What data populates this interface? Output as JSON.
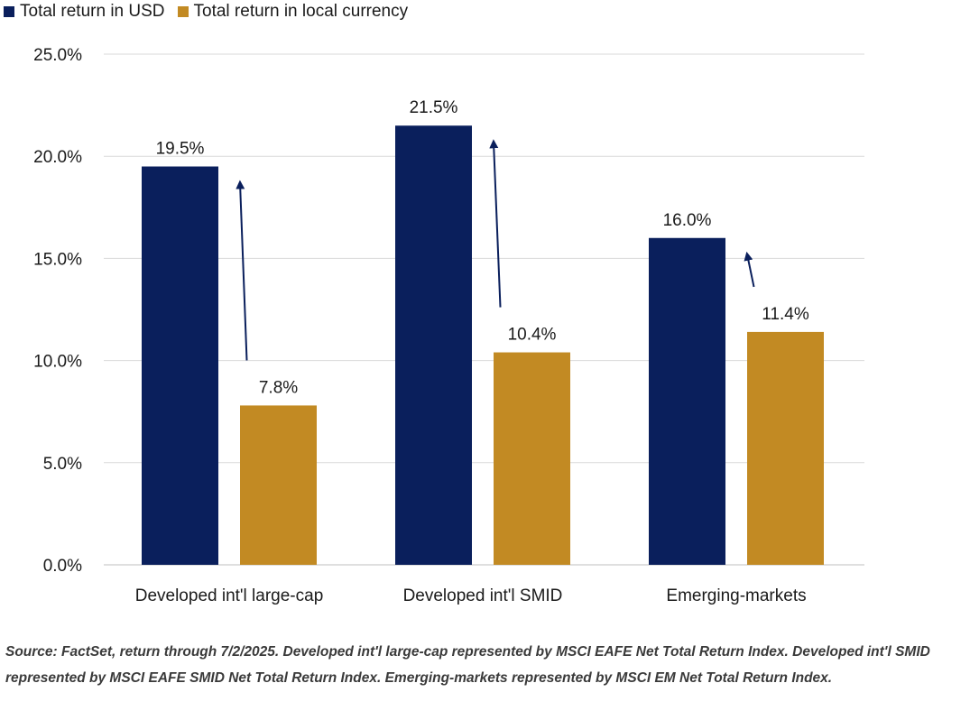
{
  "chart_data": {
    "type": "bar",
    "categories": [
      "Developed int'l large-cap",
      "Developed int'l SMID",
      "Emerging-markets"
    ],
    "series": [
      {
        "name": "Total return in USD",
        "color": "#0a1f5c",
        "values": [
          19.5,
          21.5,
          16.0
        ],
        "labels": [
          "19.5%",
          "21.5%",
          "16.0%"
        ]
      },
      {
        "name": "Total return in local currency",
        "color": "#c28a23",
        "values": [
          7.8,
          10.4,
          11.4
        ],
        "labels": [
          "7.8%",
          "10.4%",
          "11.4%"
        ]
      }
    ],
    "ylim": [
      0,
      25
    ],
    "yticks": [
      {
        "value": 0,
        "label": "0.0%"
      },
      {
        "value": 5,
        "label": "5.0%"
      },
      {
        "value": 10,
        "label": "10.0%"
      },
      {
        "value": 15,
        "label": "15.0%"
      },
      {
        "value": 20,
        "label": "20.0%"
      },
      {
        "value": 25,
        "label": "25.0%"
      }
    ],
    "grid": true,
    "legend_position": "top-left",
    "annotations": "arrows from local-currency bar up toward USD bar in each category"
  },
  "source_note": "Source: FactSet, return through 7/2/2025. Developed int'l large-cap represented by MSCI EAFE Net Total Return Index. Developed int'l SMID represented by MSCI EAFE SMID Net Total Return Index. Emerging-markets represented by MSCI EM Net Total Return Index.",
  "colors": {
    "usd": "#0a1f5c",
    "local": "#c28a23",
    "grid": "#d9d9d9",
    "arrow": "#0a1f5c"
  }
}
